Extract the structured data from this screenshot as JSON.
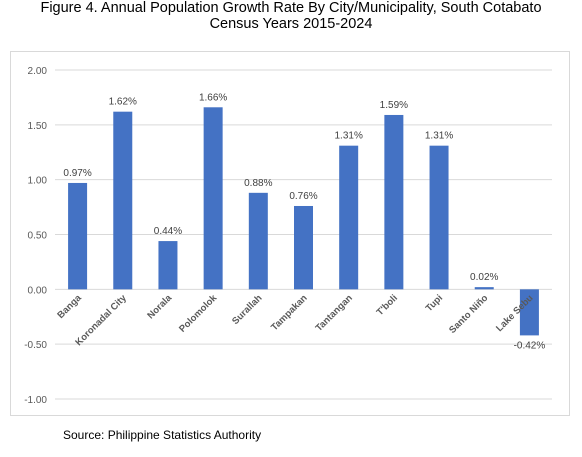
{
  "title_line1": "Figure 4. Annual Population Growth Rate By City/Municipality, South Cotabato",
  "title_line2": "Census Years 2015-2024",
  "source": "Source: Philippine Statistics Authority",
  "chart_data": {
    "type": "bar",
    "categories": [
      "Banga",
      "Koronadal City",
      "Norala",
      "Polomolok",
      "Surallah",
      "Tampakan",
      "Tantangan",
      "T'boli",
      "Tupi",
      "Santo Niño",
      "Lake Sebu"
    ],
    "values": [
      0.97,
      1.62,
      0.44,
      1.66,
      0.88,
      0.76,
      1.31,
      1.59,
      1.31,
      0.02,
      -0.42
    ],
    "data_labels": [
      "0.97%",
      "1.62%",
      "0.44%",
      "1.66%",
      "0.88%",
      "0.76%",
      "1.31%",
      "1.59%",
      "1.31%",
      "0.02%",
      "-0.42%"
    ],
    "ylim": [
      -1.0,
      2.0
    ],
    "yticks": [
      "2.00",
      "1.50",
      "1.00",
      "0.50",
      "0.00",
      "-0.50",
      "-1.00"
    ],
    "ytick_values": [
      2.0,
      1.5,
      1.0,
      0.5,
      0.0,
      -0.5,
      -1.0
    ],
    "grid": true,
    "bar_color": "#4472c4",
    "grid_color": "#d9d9d9"
  }
}
